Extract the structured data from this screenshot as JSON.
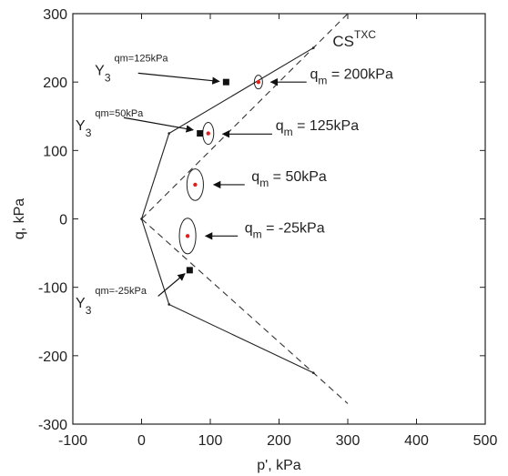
{
  "chart_data": {
    "type": "scatter",
    "xlabel": "p', kPa",
    "ylabel": "q, kPa",
    "xlim": [
      -100,
      500
    ],
    "ylim": [
      -300,
      300
    ],
    "xticks": [
      -100,
      0,
      100,
      200,
      300,
      400,
      500
    ],
    "yticks": [
      -300,
      -200,
      -100,
      0,
      100,
      200,
      300
    ],
    "grid": false,
    "cs_label": {
      "base": "CS",
      "sup": "TXC"
    },
    "cs_lines": [
      {
        "name": "compression",
        "points": [
          [
            0,
            0
          ],
          [
            300,
            300
          ]
        ]
      },
      {
        "name": "extension",
        "points": [
          [
            0,
            0
          ],
          [
            300,
            -270
          ]
        ]
      }
    ],
    "yield_surface": [
      [
        250,
        250
      ],
      [
        40,
        125
      ],
      [
        0,
        0
      ],
      [
        40,
        -125
      ],
      [
        250,
        -225
      ]
    ],
    "ellipses": [
      {
        "center": [
          170,
          200
        ],
        "rx": 6,
        "ry": 10
      },
      {
        "center": [
          97,
          125
        ],
        "rx": 8,
        "ry": 16
      },
      {
        "center": [
          78,
          50
        ],
        "rx": 12,
        "ry": 23
      },
      {
        "center": [
          67,
          -25
        ],
        "rx": 12,
        "ry": 26
      }
    ],
    "ellipse_points": [
      [
        170,
        200
      ],
      [
        97,
        125
      ],
      [
        78,
        50
      ],
      [
        67,
        -25
      ]
    ],
    "y3_points": [
      [
        123,
        200
      ],
      [
        85,
        125
      ],
      [
        70,
        -75
      ]
    ],
    "qm_labels": [
      {
        "sub": "m",
        "text": " = 200kPa",
        "at": [
          245,
          205
        ],
        "arrow_from": [
          240,
          200
        ],
        "arrow_to": [
          188,
          200
        ]
      },
      {
        "sub": "m",
        "text": " = 125kPa",
        "at": [
          195,
          130
        ],
        "arrow_from": [
          190,
          124
        ],
        "arrow_to": [
          118,
          124
        ]
      },
      {
        "sub": "m",
        "text": " = 50kPa",
        "at": [
          160,
          55
        ],
        "arrow_from": [
          150,
          50
        ],
        "arrow_to": [
          105,
          50
        ]
      },
      {
        "sub": "m",
        "text": " = -25kPa",
        "at": [
          150,
          -20
        ],
        "arrow_from": [
          140,
          -25
        ],
        "arrow_to": [
          93,
          -25
        ]
      }
    ],
    "y3_labels": [
      {
        "base": "Y",
        "sub": "3",
        "sup": "qm=125kPa",
        "at": [
          -68,
          210
        ],
        "arrow_from": [
          -5,
          213
        ],
        "arrow_to": [
          113,
          201
        ]
      },
      {
        "base": "Y",
        "sub": "3",
        "sup": "qm=50kPa",
        "at": [
          -96,
          130
        ],
        "arrow_from": [
          -26,
          148
        ],
        "arrow_to": [
          75,
          130
        ]
      },
      {
        "base": "Y",
        "sub": "3",
        "sup": "qm=-25kPa",
        "at": [
          -96,
          -130
        ],
        "arrow_from": [
          24,
          -113
        ],
        "arrow_to": [
          63,
          -80
        ]
      }
    ]
  }
}
